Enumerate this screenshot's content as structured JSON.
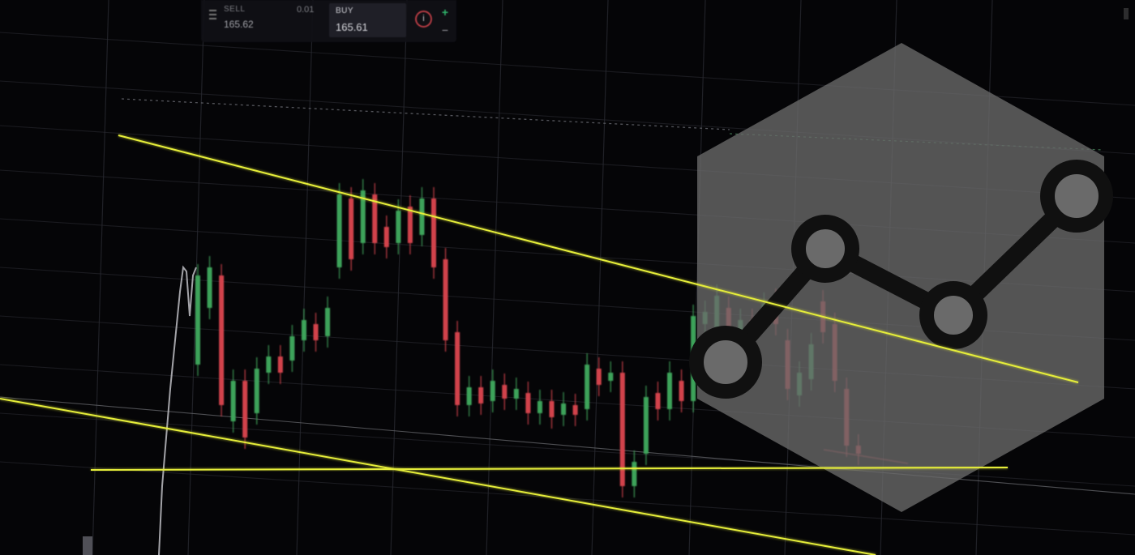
{
  "trade_panel": {
    "sell_label": "SELL",
    "sell_value": "165.62",
    "spread": "0.01",
    "buy_label": "BUY",
    "buy_value": "165.61",
    "info_glyph": "i",
    "plus_glyph": "+",
    "minus_glyph": "−"
  },
  "icons": {
    "menu": "menu-icon",
    "info": "info-icon",
    "overlay": "line-chart-hexagon-icon"
  },
  "colors": {
    "background": "#050507",
    "grid": "#2a2b32",
    "candle_up": "#3ea35a",
    "candle_down": "#d2424c",
    "trendline": "#e6ee3a",
    "overlay_hexagon": "#6a6a6a",
    "overlay_glyph": "#101010"
  },
  "chart_data": {
    "type": "candlestick",
    "title": "",
    "xlabel": "",
    "ylabel": "",
    "candles": [
      {
        "d": "up",
        "o": 450,
        "c": 340
      },
      {
        "d": "up",
        "o": 380,
        "c": 330
      },
      {
        "d": "down",
        "o": 340,
        "c": 500
      },
      {
        "d": "up",
        "o": 520,
        "c": 470
      },
      {
        "d": "down",
        "o": 470,
        "c": 540
      },
      {
        "d": "up",
        "o": 510,
        "c": 455
      },
      {
        "d": "up",
        "o": 460,
        "c": 440
      },
      {
        "d": "down",
        "o": 440,
        "c": 460
      },
      {
        "d": "up",
        "o": 445,
        "c": 415
      },
      {
        "d": "up",
        "o": 420,
        "c": 395
      },
      {
        "d": "down",
        "o": 400,
        "c": 420
      },
      {
        "d": "up",
        "o": 415,
        "c": 380
      },
      {
        "d": "up",
        "o": 330,
        "c": 240
      },
      {
        "d": "down",
        "o": 245,
        "c": 320
      },
      {
        "d": "up",
        "o": 300,
        "c": 235
      },
      {
        "d": "down",
        "o": 240,
        "c": 300
      },
      {
        "d": "down",
        "o": 280,
        "c": 305
      },
      {
        "d": "up",
        "o": 300,
        "c": 260
      },
      {
        "d": "down",
        "o": 255,
        "c": 300
      },
      {
        "d": "up",
        "o": 290,
        "c": 245
      },
      {
        "d": "down",
        "o": 245,
        "c": 330
      },
      {
        "d": "down",
        "o": 320,
        "c": 420
      },
      {
        "d": "down",
        "o": 410,
        "c": 500
      },
      {
        "d": "up",
        "o": 500,
        "c": 478
      },
      {
        "d": "down",
        "o": 478,
        "c": 498
      },
      {
        "d": "up",
        "o": 495,
        "c": 470
      },
      {
        "d": "down",
        "o": 475,
        "c": 492
      },
      {
        "d": "up",
        "o": 492,
        "c": 480
      },
      {
        "d": "down",
        "o": 485,
        "c": 510
      },
      {
        "d": "up",
        "o": 510,
        "c": 495
      },
      {
        "d": "down",
        "o": 495,
        "c": 515
      },
      {
        "d": "up",
        "o": 512,
        "c": 498
      },
      {
        "d": "down",
        "o": 500,
        "c": 512
      },
      {
        "d": "up",
        "o": 505,
        "c": 450
      },
      {
        "d": "down",
        "o": 455,
        "c": 475
      },
      {
        "d": "up",
        "o": 470,
        "c": 460
      },
      {
        "d": "down",
        "o": 460,
        "c": 600
      },
      {
        "d": "up",
        "o": 600,
        "c": 570
      },
      {
        "d": "up",
        "o": 560,
        "c": 490
      },
      {
        "d": "down",
        "o": 485,
        "c": 505
      },
      {
        "d": "up",
        "o": 505,
        "c": 460
      },
      {
        "d": "down",
        "o": 470,
        "c": 495
      },
      {
        "d": "up",
        "o": 495,
        "c": 390
      },
      {
        "d": "up",
        "o": 400,
        "c": 385
      },
      {
        "d": "up",
        "o": 410,
        "c": 365
      },
      {
        "d": "down",
        "o": 380,
        "c": 415
      },
      {
        "d": "up",
        "o": 410,
        "c": 395
      },
      {
        "d": "down",
        "o": 395,
        "c": 410
      },
      {
        "d": "up",
        "o": 390,
        "c": 375
      },
      {
        "d": "down",
        "o": 370,
        "c": 400
      },
      {
        "d": "down",
        "o": 420,
        "c": 480
      },
      {
        "d": "up",
        "o": 488,
        "c": 460
      },
      {
        "d": "up",
        "o": 468,
        "c": 425
      },
      {
        "d": "down",
        "o": 372,
        "c": 410
      },
      {
        "d": "down",
        "o": 400,
        "c": 470
      },
      {
        "d": "down",
        "o": 480,
        "c": 550
      },
      {
        "d": "down",
        "o": 550,
        "c": 560
      }
    ],
    "trendlines": [
      "upper resistance",
      "horizontal support",
      "lower channel"
    ]
  }
}
